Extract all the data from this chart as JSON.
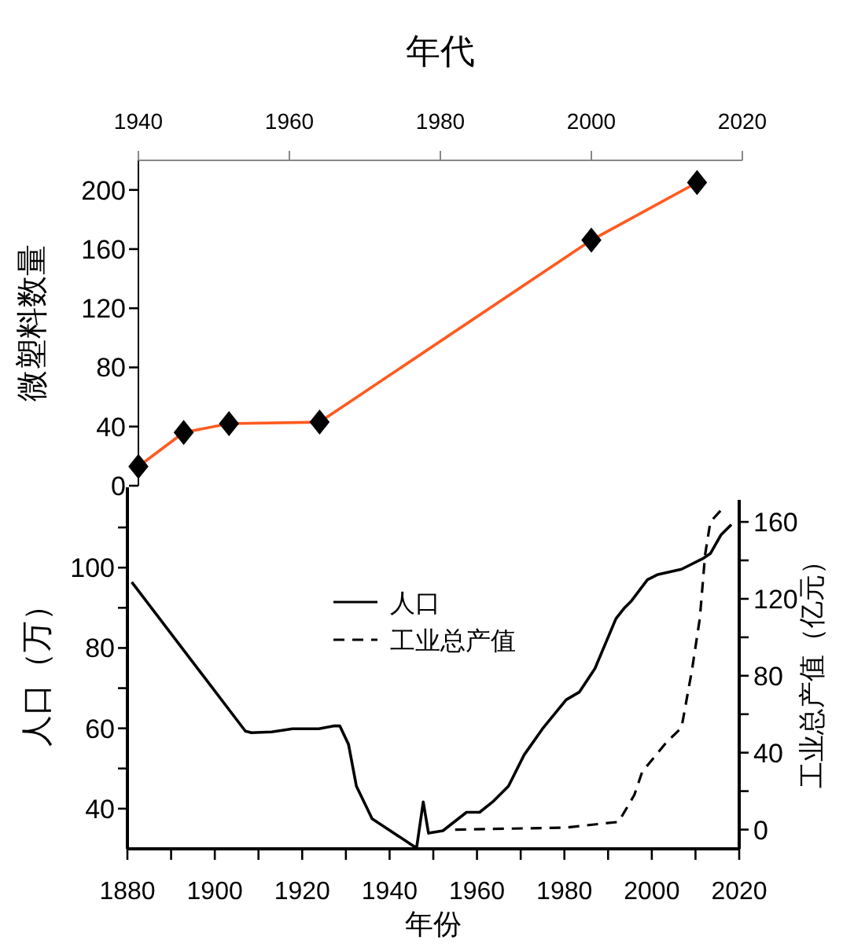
{
  "chart_data": [
    {
      "type": "line",
      "xlabel": "年代",
      "ylabel": "微塑料数量",
      "xlim": [
        1940,
        2020
      ],
      "xticks": [
        1940,
        1960,
        1980,
        2000,
        2020
      ],
      "ylim": [
        0,
        220
      ],
      "yticks": [
        0,
        40,
        80,
        120,
        160,
        200
      ],
      "marker": "diamond",
      "line_style": "solid",
      "series": [
        {
          "color": "#ff5a1f",
          "x": [
            1940,
            1946,
            1952,
            1964,
            2000,
            2014
          ],
          "values": [
            13,
            36,
            42,
            43,
            166,
            205
          ]
        }
      ]
    },
    {
      "type": "line",
      "xlabel": "年份",
      "ylabel": "人口（万）",
      "y2label": "工业总产值（亿元）",
      "xlim": [
        1880,
        2020
      ],
      "xticks": [
        1880,
        {
          "value": 1890,
          "label": null
        },
        1900,
        {
          "value": 1910,
          "label": null
        },
        1920,
        {
          "value": 1930,
          "label": null
        },
        1940,
        {
          "value": 1950,
          "label": null
        },
        1960,
        {
          "value": 1970,
          "label": null
        },
        1980,
        {
          "value": 1990,
          "label": null
        },
        2000,
        {
          "value": 2010,
          "label": null
        },
        2020
      ],
      "ylim": [
        30,
        120
      ],
      "yticks": [
        40,
        {
          "value": 50,
          "label": null
        },
        60,
        {
          "value": 70,
          "label": null
        },
        80,
        {
          "value": 90,
          "label": null
        },
        100,
        {
          "value": 110,
          "label": null
        }
      ],
      "y2lim": [
        -10,
        178
      ],
      "y2ticks": [
        0,
        {
          "value": 20,
          "label": null
        },
        40,
        {
          "value": 60,
          "label": null
        },
        80,
        {
          "value": 100,
          "label": null
        },
        120,
        {
          "value": 140,
          "label": null
        },
        160
      ],
      "legend": "top",
      "series": [
        {
          "name": "人口",
          "color": "#000000",
          "line_style": "solid",
          "x": [
            1881,
            1907,
            1908.4,
            1913,
            1917.8,
            1923.8,
            1927.4,
            1928.6,
            1930.6,
            1932.4,
            1936,
            1942,
            1945.6,
            1946.2,
            1947.7,
            1948.9,
            1952.2,
            1957.6,
            1960.6,
            1963.6,
            1967.2,
            1970.8,
            1975,
            1980.4,
            1983.4,
            1987,
            1991.8,
            1993.6,
            1995.4,
            1999,
            2001.4,
            2006.8,
            2011.6,
            2013.4,
            2015.8,
            2018.2
          ],
          "values": [
            96.4,
            59.3,
            58.9,
            59.1,
            59.9,
            59.9,
            60.6,
            60.6,
            56,
            45.6,
            37.5,
            33.2,
            30.6,
            30.4,
            41.7,
            33.9,
            34.5,
            39.1,
            39.1,
            41.7,
            45.6,
            53.4,
            59.9,
            67.1,
            69,
            74.9,
            87.3,
            89.8,
            91.8,
            97,
            98.3,
            99.6,
            102.2,
            103.5,
            108.1,
            110.7
          ]
        },
        {
          "name": "工业总产值",
          "color": "#000000",
          "line_style": "dashed",
          "axis": "y2",
          "x": [
            1955,
            1980,
            1992.4,
            1996,
            1997.8,
            2003.2,
            2006.8,
            2009.2,
            2011,
            2012.2,
            2013.4,
            2015.8
          ],
          "values": [
            0,
            1,
            4,
            18,
            30,
            45,
            53,
            83,
            110,
            143,
            160,
            166
          ]
        }
      ]
    }
  ]
}
